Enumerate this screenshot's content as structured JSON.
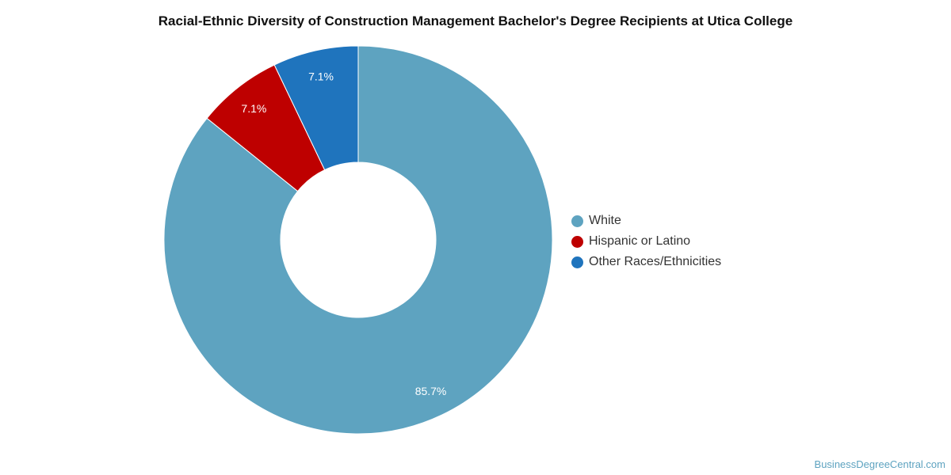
{
  "chart_data": {
    "type": "pie",
    "title": "Racial-Ethnic Diversity of Construction Management Bachelor's Degree Recipients at Utica College",
    "donut": true,
    "legend_placement": "right",
    "slices": [
      {
        "name": "White",
        "value": 85.7,
        "label": "85.7%",
        "color": "#5ea3c0"
      },
      {
        "name": "Hispanic or Latino",
        "value": 7.1,
        "label": "7.1%",
        "color": "#be0000"
      },
      {
        "name": "Other Races/Ethnicities",
        "value": 7.1,
        "label": "7.1%",
        "color": "#1f74bd"
      }
    ]
  },
  "source": "BusinessDegreeCentral.com"
}
